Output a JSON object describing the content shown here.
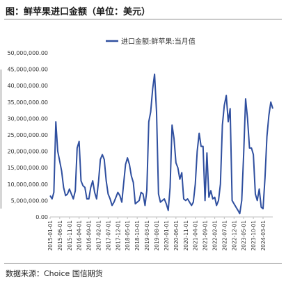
{
  "figure": {
    "title": "图：鲜苹果进口金额（单位：美元）",
    "source": "数据来源：Choice  国信期货"
  },
  "colors": {
    "series": "#2f4f9f",
    "axis": "#bfbfbf",
    "text": "#333333",
    "background": "#ffffff"
  },
  "chart_data": {
    "type": "line",
    "title": "",
    "xlabel": "",
    "ylabel": "",
    "ylim": [
      0,
      50000000
    ],
    "yticks": [
      0,
      5000000,
      10000000,
      15000000,
      20000000,
      25000000,
      30000000,
      35000000,
      40000000,
      45000000,
      50000000
    ],
    "ytick_labels": [
      "0.00",
      "5,000,000.00",
      "10,000,000.00",
      "15,000,000.00",
      "20,000,000.00",
      "25,000,000.00",
      "30,000,000.00",
      "35,000,000.00",
      "40,000,000.00",
      "45,000,000.00",
      "50,000,000.00"
    ],
    "grid": false,
    "legend": "top",
    "xtick_labels": [
      "2015-01-01",
      "2015-06-01",
      "2015-11-01",
      "2016-04-01",
      "2016-09-01",
      "2017-02-01",
      "2017-07-01",
      "2017-12-01",
      "2018-05-01",
      "2018-10-01",
      "2019-03-01",
      "2019-08-01",
      "2020-01-01",
      "2020-06-01",
      "2020-11-01",
      "2021-04-01",
      "2021-09-01",
      "2022-02-01",
      "2022-07-01",
      "2022-12-01",
      "2023-05-01",
      "2023-10-01",
      "2024-03-01"
    ],
    "x_start": "2015-01-01",
    "x_end": "2024-08-01",
    "series": [
      {
        "name": "进口金额:鲜苹果:当月值",
        "values": [
          6500000,
          5500000,
          7500000,
          29000000,
          20000000,
          17000000,
          14000000,
          9000000,
          6500000,
          7000000,
          8500000,
          7000000,
          5500000,
          8000000,
          21000000,
          23000000,
          11000000,
          9500000,
          9000000,
          5500000,
          5500000,
          9000000,
          11000000,
          7500000,
          5500000,
          11000000,
          17500000,
          19000000,
          17500000,
          11000000,
          7000000,
          5500000,
          3500000,
          4500000,
          6000000,
          7500000,
          6500000,
          4500000,
          10000000,
          16000000,
          18000000,
          16000000,
          12500000,
          10500000,
          4000000,
          4500000,
          5000000,
          7500000,
          7000000,
          3500000,
          8000000,
          29000000,
          32000000,
          39000000,
          43500000,
          32000000,
          7000000,
          4500000,
          5000000,
          5500000,
          4000000,
          2000000,
          9000000,
          28000000,
          24000000,
          16500000,
          15000000,
          11500000,
          13500000,
          5500000,
          5000000,
          5500000,
          4500000,
          3500000,
          4500000,
          10000000,
          20000000,
          25500000,
          21500000,
          21500000,
          5000000,
          19500000,
          6000000,
          8000000,
          5500000,
          6000000,
          3500000,
          5000000,
          10000000,
          28000000,
          34000000,
          37000000,
          29000000,
          33000000,
          5000000,
          4000000,
          3000000,
          2000000,
          1000000,
          5000000,
          19000000,
          36000000,
          30000000,
          21000000,
          21000000,
          19000000,
          7000000,
          5000000,
          8500000,
          3000000,
          2500000,
          12000000,
          24500000,
          31000000,
          35000000,
          33000000
        ]
      }
    ]
  }
}
